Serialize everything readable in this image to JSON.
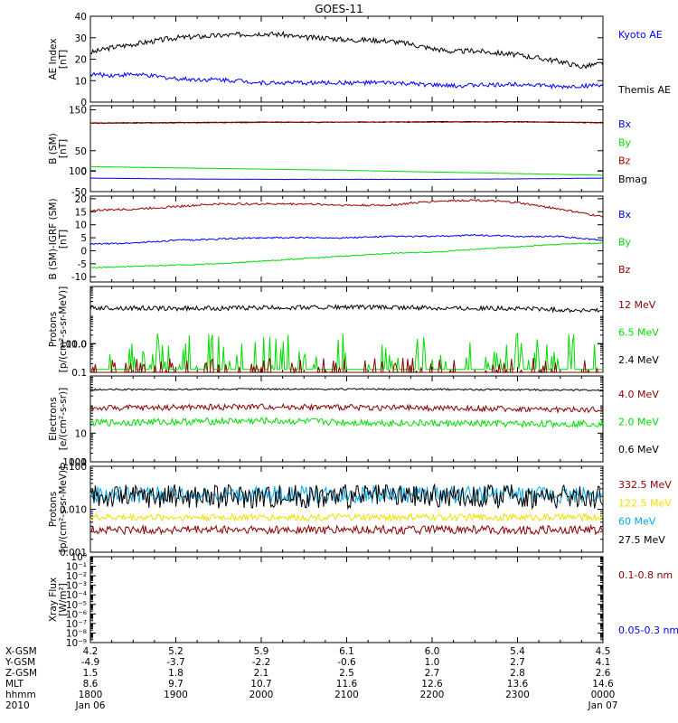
{
  "title": "GOES-11",
  "colors": {
    "black": "#000000",
    "blue": "#0000ff",
    "red": "#a00000",
    "darkred": "#8b0000",
    "green": "#00dd00",
    "cyan": "#00a8e8",
    "yellow": "#f0e000"
  },
  "chart_data": [
    {
      "type": "line",
      "id": "ae",
      "ylabel": [
        "AE Index",
        "[nT]"
      ],
      "yscale": "linear",
      "ylim": [
        0,
        40
      ],
      "yticks": [
        "0",
        "10",
        "20",
        "30",
        "40"
      ],
      "xlim": [
        0,
        6
      ],
      "legend": [
        {
          "text": "Kyoto AE",
          "color": "blue"
        },
        {
          "text": "Themis AE",
          "color": "black"
        }
      ],
      "series": [
        {
          "color": "black",
          "x": [
            0,
            0.25,
            0.5,
            0.75,
            1,
            1.25,
            1.5,
            1.75,
            2,
            2.25,
            2.5,
            2.75,
            3,
            3.25,
            3.5,
            3.75,
            4,
            4.25,
            4.5,
            4.75,
            5,
            5.25,
            5.5,
            5.75,
            6
          ],
          "y": [
            23,
            25.5,
            27,
            28.5,
            30,
            30.5,
            31,
            31.5,
            32,
            31.5,
            30,
            30,
            29,
            29,
            28.5,
            27,
            25,
            23.5,
            24,
            23,
            22,
            20.5,
            19,
            16.5,
            18
          ],
          "noise": 1.2
        },
        {
          "color": "blue",
          "x": [
            0,
            0.25,
            0.5,
            0.75,
            1,
            1.25,
            1.5,
            1.75,
            2,
            2.25,
            2.5,
            2.75,
            3,
            3.25,
            3.5,
            3.75,
            4,
            4.25,
            4.5,
            4.75,
            5,
            5.25,
            5.5,
            5.75,
            6
          ],
          "y": [
            13,
            12.5,
            13,
            12,
            11,
            10.5,
            10.5,
            10,
            9,
            9,
            9,
            9,
            9,
            9,
            9,
            8.5,
            8,
            7.5,
            8,
            8,
            8.5,
            8,
            7,
            7.5,
            8
          ],
          "noise": 1.0
        }
      ]
    },
    {
      "type": "line",
      "id": "b",
      "ylabel": [
        "B (SM)",
        "[nT]"
      ],
      "yscale": "linear",
      "ylim": [
        -50,
        160
      ],
      "yticks": [
        "-50",
        "0",
        "50",
        "100",
        "150"
      ],
      "xlim": [
        0,
        6
      ],
      "legend": [
        {
          "text": "Bx",
          "color": "blue"
        },
        {
          "text": "By",
          "color": "green"
        },
        {
          "text": "Bz",
          "color": "red"
        },
        {
          "text": "Bmag",
          "color": "black"
        }
      ],
      "series": [
        {
          "color": "black",
          "x": [
            0,
            1,
            2,
            3,
            4,
            5,
            6
          ],
          "y": [
            118,
            119,
            120,
            120,
            121,
            121,
            119
          ],
          "noise": 0.6
        },
        {
          "color": "red",
          "x": [
            0,
            1,
            2,
            3,
            4,
            5,
            6
          ],
          "y": [
            117,
            118,
            119,
            119.5,
            120,
            120,
            118
          ],
          "noise": 0.8
        },
        {
          "color": "green",
          "x": [
            0,
            1,
            2,
            3,
            4,
            5,
            6
          ],
          "y": [
            11,
            8,
            5,
            2,
            -2,
            -6,
            -10
          ],
          "noise": 0.3
        },
        {
          "color": "blue",
          "x": [
            0,
            1,
            2,
            3,
            4,
            5,
            6
          ],
          "y": [
            -17,
            -19,
            -20,
            -20,
            -20,
            -19,
            -17
          ],
          "noise": 0.3
        }
      ]
    },
    {
      "type": "line",
      "id": "bdiff",
      "ylabel": [
        "B (SM)-IGRF (SM)",
        "[nT]"
      ],
      "yscale": "linear",
      "ylim": [
        -12,
        21
      ],
      "yticks": [
        "-10",
        "-5",
        "0",
        "5",
        "10",
        "15",
        "20"
      ],
      "xlim": [
        0,
        6
      ],
      "legend": [
        {
          "text": "Bx",
          "color": "blue"
        },
        {
          "text": "By",
          "color": "green"
        },
        {
          "text": "Bz",
          "color": "red"
        }
      ],
      "series": [
        {
          "color": "red",
          "x": [
            0,
            0.5,
            1,
            1.5,
            2,
            2.5,
            3,
            3.5,
            4,
            4.5,
            5,
            5.5,
            6
          ],
          "y": [
            15.5,
            16,
            17,
            18,
            18,
            18,
            17.5,
            17.5,
            19,
            19.5,
            18.5,
            16,
            13
          ],
          "noise": 0.4
        },
        {
          "color": "blue",
          "x": [
            0,
            0.5,
            1,
            1.5,
            2,
            2.5,
            3,
            3.5,
            4,
            4.5,
            5,
            5.5,
            6
          ],
          "y": [
            2.5,
            3,
            4,
            4.5,
            5,
            5,
            5,
            5.5,
            5.5,
            6,
            5.5,
            5.5,
            4
          ],
          "noise": 0.3
        },
        {
          "color": "green",
          "x": [
            0,
            0.5,
            1,
            1.5,
            2,
            2.5,
            3,
            3.5,
            4,
            4.5,
            5,
            5.5,
            6
          ],
          "y": [
            -6.5,
            -6,
            -5.5,
            -5,
            -4,
            -3,
            -2,
            -1,
            -0.5,
            0.5,
            1.5,
            2.5,
            3
          ],
          "noise": 0.2
        }
      ]
    },
    {
      "type": "line",
      "id": "protons1",
      "ylabel": [
        "Protons",
        "[p/(cm²-s-sr-MeV)]"
      ],
      "yscale": "log",
      "ylim": [
        0.1,
        100
      ],
      "yticks": [
        "0.1",
        "1.0",
        "10.0",
        "100.0"
      ],
      "xlim": [
        0,
        6
      ],
      "legend": [
        {
          "text": "12 MeV",
          "color": "darkred"
        },
        {
          "text": "6.5 MeV",
          "color": "green"
        },
        {
          "text": "2.4 MeV",
          "color": "black"
        }
      ],
      "series": [
        {
          "color": "black",
          "x": [
            0,
            1,
            2,
            3,
            4,
            5,
            6
          ],
          "y": [
            18,
            17,
            18,
            19,
            18,
            17,
            14
          ],
          "noise": 0.08,
          "noiseMode": "log"
        },
        {
          "color": "green",
          "x": [
            0,
            6
          ],
          "y": [
            0.15,
            0.15
          ],
          "noise": 0.6,
          "noiseMode": "spike"
        },
        {
          "color": "darkred",
          "x": [
            0,
            6
          ],
          "y": [
            0.1,
            0.1
          ],
          "noise": 0.25,
          "noiseMode": "spike"
        }
      ]
    },
    {
      "type": "line",
      "id": "electrons",
      "ylabel": [
        "Electrons",
        "[e/(cm²-s-sr)]"
      ],
      "yscale": "log",
      "ylim": [
        1,
        1000
      ],
      "yticks": [
        "1",
        "10",
        "100",
        "1000"
      ],
      "xlim": [
        0,
        6
      ],
      "legend": [
        {
          "text": "4.0 MeV",
          "color": "darkred"
        },
        {
          "text": "2.0 MeV",
          "color": "green"
        },
        {
          "text": "0.6 MeV",
          "color": "black"
        }
      ],
      "series": [
        {
          "color": "black",
          "x": [
            0,
            1,
            2,
            3,
            4,
            5,
            6
          ],
          "y": [
            330,
            340,
            350,
            345,
            340,
            330,
            320
          ],
          "noise": 0.03,
          "noiseMode": "log"
        },
        {
          "color": "darkred",
          "x": [
            0,
            1,
            2,
            3,
            4,
            5,
            6
          ],
          "y": [
            75,
            80,
            85,
            80,
            75,
            70,
            65
          ],
          "noise": 0.1,
          "noiseMode": "log"
        },
        {
          "color": "green",
          "x": [
            0,
            1,
            2,
            3,
            4,
            5,
            6
          ],
          "y": [
            23,
            25,
            27,
            24,
            22,
            21,
            22
          ],
          "noise": 0.12,
          "noiseMode": "log"
        }
      ]
    },
    {
      "type": "line",
      "id": "protons2",
      "ylabel": [
        "Protons",
        "[p/(cm²-s-sr-MeV)]"
      ],
      "yscale": "log",
      "ylim": [
        0.001,
        0.1
      ],
      "yticks": [
        "0.001",
        "0.010",
        "0.100"
      ],
      "xlim": [
        0,
        6
      ],
      "legend": [
        {
          "text": "332.5 MeV",
          "color": "darkred"
        },
        {
          "text": "122.5 MeV",
          "color": "yellow"
        },
        {
          "text": "60 MeV",
          "color": "cyan"
        },
        {
          "text": "27.5 MeV",
          "color": "black"
        }
      ],
      "series": [
        {
          "color": "cyan",
          "x": [
            0,
            6
          ],
          "y": [
            0.022,
            0.022
          ],
          "noise": 0.2,
          "noiseMode": "log"
        },
        {
          "color": "black",
          "x": [
            0,
            6
          ],
          "y": [
            0.02,
            0.02
          ],
          "noise": 0.28,
          "noiseMode": "log"
        },
        {
          "color": "yellow",
          "x": [
            0,
            6
          ],
          "y": [
            0.0065,
            0.0065
          ],
          "noise": 0.08,
          "noiseMode": "log"
        },
        {
          "color": "darkred",
          "x": [
            0,
            6
          ],
          "y": [
            0.0033,
            0.0033
          ],
          "noise": 0.1,
          "noiseMode": "log"
        }
      ]
    },
    {
      "type": "line",
      "id": "xray",
      "ylabel": [
        "Xray Flux",
        "[W/m²]"
      ],
      "yscale": "log",
      "ylim": [
        1e-09,
        1
      ],
      "yticks": [
        "10⁻⁹",
        "10⁻⁸",
        "10⁻⁷",
        "10⁻⁶",
        "10⁻⁵",
        "10⁻⁴",
        "10⁻³",
        "10⁻²",
        "10⁻¹",
        "10⁰"
      ],
      "xlim": [
        0,
        6
      ],
      "legend": [
        {
          "text": "0.1-0.8 nm",
          "color": "darkred"
        },
        {
          "text": "0.05-0.3 nm",
          "color": "blue"
        }
      ],
      "series": []
    }
  ],
  "x_axis": {
    "row_labels": [
      "X-GSM",
      "Y-GSM",
      "Z-GSM",
      "MLT",
      "hhmm",
      "2010"
    ],
    "columns": [
      {
        "x": 0,
        "values": [
          "4.2",
          "-4.9",
          "1.5",
          "8.6",
          "1800",
          "Jan 06"
        ]
      },
      {
        "x": 1,
        "values": [
          "5.2",
          "-3.7",
          "1.8",
          "9.7",
          "1900",
          ""
        ]
      },
      {
        "x": 2,
        "values": [
          "5.9",
          "-2.2",
          "2.1",
          "10.7",
          "2000",
          ""
        ]
      },
      {
        "x": 3,
        "values": [
          "6.1",
          "-0.6",
          "2.5",
          "11.6",
          "2100",
          ""
        ]
      },
      {
        "x": 4,
        "values": [
          "6.0",
          "1.0",
          "2.7",
          "12.6",
          "2200",
          ""
        ]
      },
      {
        "x": 5,
        "values": [
          "5.4",
          "2.7",
          "2.8",
          "13.6",
          "2300",
          ""
        ]
      },
      {
        "x": 6,
        "values": [
          "4.5",
          "4.1",
          "2.6",
          "14.6",
          "0000",
          "Jan 07"
        ]
      }
    ]
  }
}
